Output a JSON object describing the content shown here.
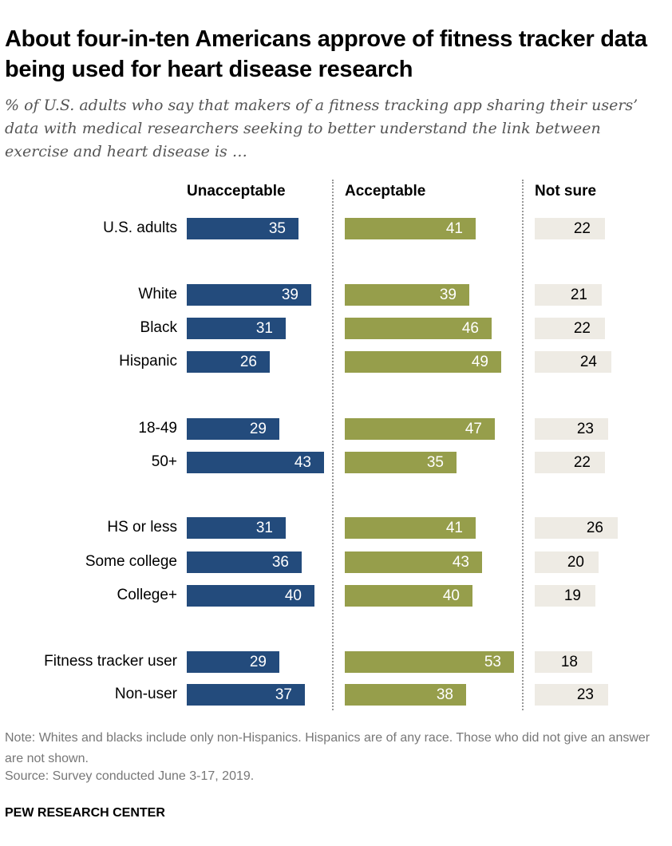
{
  "title": "About four-in-ten Americans approve of fitness tracker data being used for heart disease research",
  "subtitle": "% of U.S. adults who say that makers of a fitness tracking app sharing their users’ data with medical researchers seeking to better understand the link between exercise and heart disease is …",
  "note": "Note: Whites and blacks include only non-Hispanics. Hispanics are of any race. Those who did not give an answer are not shown.",
  "source": "Source: Survey conducted June 3-17, 2019.",
  "brand": "PEW RESEARCH CENTER",
  "chart_data": {
    "type": "bar",
    "orientation": "horizontal",
    "categories": [
      "U.S. adults",
      "White",
      "Black",
      "Hispanic",
      "18-49",
      "50+",
      "HS or less",
      "Some college",
      "College+",
      "Fitness tracker user",
      "Non-user"
    ],
    "series": [
      {
        "name": "Unacceptable",
        "color": "#234b7c",
        "values": [
          35,
          39,
          31,
          26,
          29,
          43,
          31,
          36,
          40,
          29,
          37
        ]
      },
      {
        "name": "Acceptable",
        "color": "#969e4b",
        "values": [
          41,
          39,
          46,
          49,
          47,
          35,
          41,
          43,
          40,
          53,
          38
        ]
      },
      {
        "name": "Not sure",
        "color": "#eeebe4",
        "values": [
          22,
          21,
          22,
          24,
          23,
          22,
          26,
          20,
          19,
          18,
          23
        ]
      }
    ]
  }
}
